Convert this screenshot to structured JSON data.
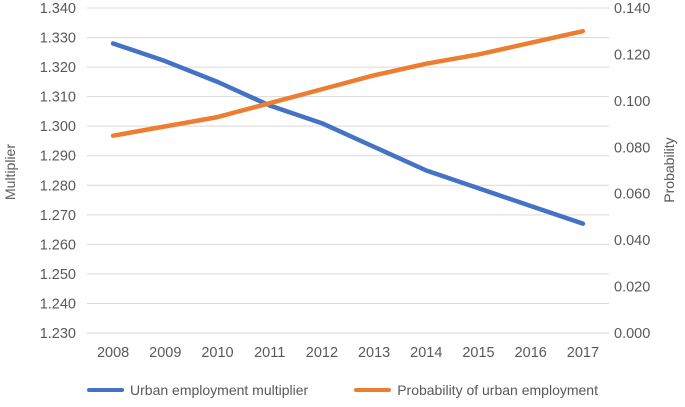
{
  "chart_data": {
    "type": "line",
    "title": "",
    "x_tick_labels": [
      "2008",
      "2009",
      "2010",
      "2011",
      "2012",
      "2013",
      "2014",
      "2015",
      "2016",
      "2017"
    ],
    "series": [
      {
        "name": "Urban employment multiplier",
        "axis": "left",
        "color": "#4472C4",
        "values": [
          1.328,
          1.322,
          1.315,
          1.307,
          1.301,
          1.293,
          1.285,
          1.279,
          1.273,
          1.267
        ]
      },
      {
        "name": "Probability of urban employment",
        "axis": "right",
        "color": "#ED7D31",
        "values": [
          0.085,
          0.089,
          0.093,
          0.099,
          0.105,
          0.111,
          0.116,
          0.12,
          0.125,
          0.13
        ]
      }
    ],
    "left_axis": {
      "label": "Multiplier",
      "min": 1.23,
      "max": 1.34,
      "step": 0.01,
      "tick_labels": [
        "1.340",
        "1.330",
        "1.320",
        "1.310",
        "1.300",
        "1.290",
        "1.280",
        "1.270",
        "1.260",
        "1.250",
        "1.240",
        "1.230"
      ]
    },
    "right_axis": {
      "label": "Probability",
      "min": 0.0,
      "max": 0.14,
      "step": 0.02,
      "tick_labels": [
        "0.140",
        "0.120",
        "0.100",
        "0.080",
        "0.060",
        "0.040",
        "0.020",
        "0.000"
      ]
    },
    "grid": "horizontal major gridlines from left axis",
    "legend_position": "bottom-center"
  },
  "colors": {
    "text": "#595959",
    "gridline": "#D9D9D9",
    "background": "#FFFFFF",
    "series_blue": "#4472C4",
    "series_orange": "#ED7D31"
  }
}
